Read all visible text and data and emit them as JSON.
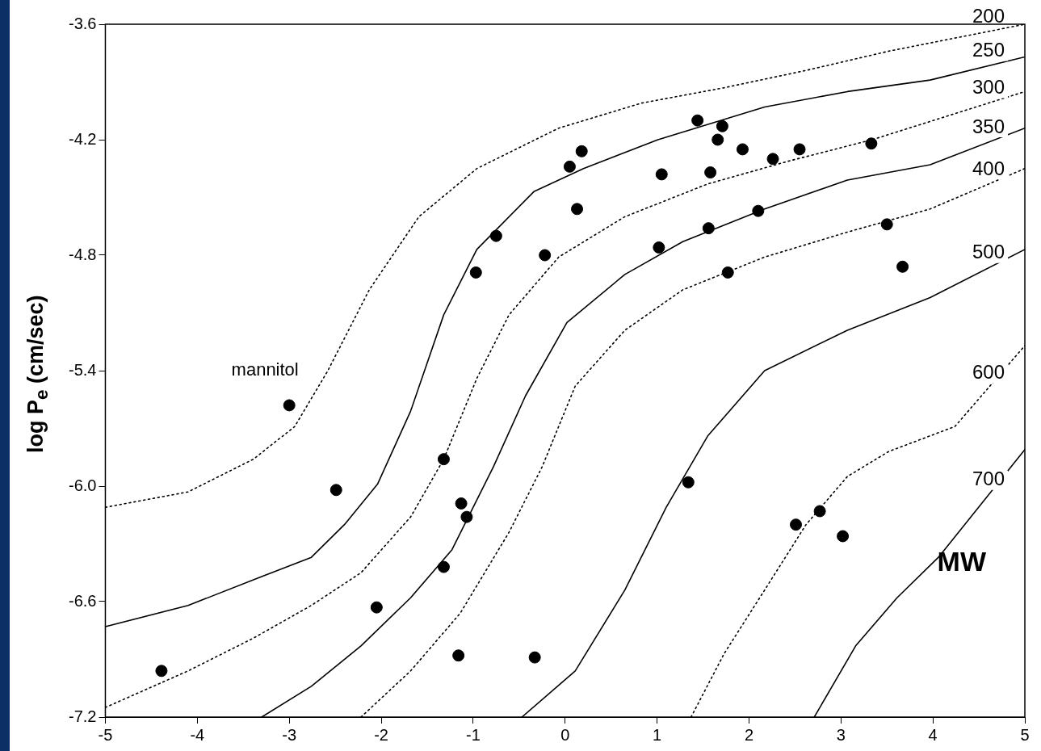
{
  "chart_data": {
    "type": "scatter",
    "ylabel": "log P$_{e}$ (cm/sec)",
    "legend_title": "MW",
    "grid": false,
    "legend": false,
    "marker": "circle",
    "xlim": [
      -5,
      5
    ],
    "xticks": [
      -5,
      -4,
      -3,
      -2,
      -1,
      0,
      1,
      2,
      3,
      4,
      5
    ],
    "ylim": [
      -7.2,
      -3.6
    ],
    "yticks": [
      -3.6,
      -4.2,
      -4.8,
      -5.4,
      {
        "value": -6,
        "label": "-6.0"
      },
      -6.6,
      -7.2
    ],
    "annotations": [
      {
        "text": "mannitol",
        "x": -3.0,
        "y": -5.58
      }
    ],
    "series": [
      {
        "color": "#000000",
        "x": [
          -4.39,
          -3.0,
          -2.49,
          -2.05,
          -1.32,
          -1.13,
          -1.07,
          -1.32,
          -1.16,
          -0.33,
          -0.97,
          -0.75,
          -0.22,
          0.05,
          0.18,
          0.13,
          1.02,
          1.05,
          1.44,
          1.71,
          1.66,
          1.58,
          1.56,
          1.93,
          2.26,
          2.55,
          2.1,
          1.77,
          1.34,
          2.51,
          2.77,
          3.02,
          3.33,
          3.5,
          3.67
        ],
        "values": [
          -6.96,
          -5.58,
          -6.02,
          -6.63,
          -5.86,
          -6.09,
          -6.16,
          -6.42,
          -6.88,
          -6.89,
          -4.89,
          -4.7,
          -4.8,
          -4.34,
          -4.26,
          -4.56,
          -4.76,
          -4.38,
          -4.1,
          -4.13,
          -4.2,
          -4.37,
          -4.66,
          -4.25,
          -4.3,
          -4.25,
          -4.57,
          -4.89,
          -5.98,
          -6.2,
          -6.13,
          -6.26,
          -4.22,
          -4.64,
          -4.86
        ]
      },
      {
        "type": "line",
        "name": "200",
        "color": "#000000",
        "line_style": "dotted",
        "marker": "none",
        "x": [
          -5,
          -4.1,
          -3.39,
          -2.94,
          -2.58,
          -2.13,
          -1.59,
          -0.96,
          -0.07,
          0.83,
          1.73,
          2.62,
          3.52,
          5
        ],
        "values": [
          -6.11,
          -6.03,
          -5.86,
          -5.69,
          -5.4,
          -4.98,
          -4.6,
          -4.35,
          -4.14,
          -4.01,
          -3.93,
          -3.84,
          -3.74,
          -3.6
        ]
      },
      {
        "type": "line",
        "name": "250",
        "color": "#000000",
        "line_style": "solid",
        "marker": "none",
        "x": [
          -5,
          -4.1,
          -3.3,
          -2.76,
          -2.4,
          -2.04,
          -1.68,
          -1.32,
          -0.96,
          -0.34,
          0.2,
          1.01,
          2.17,
          3.07,
          3.97,
          5
        ],
        "values": [
          -6.73,
          -6.62,
          -6.47,
          -6.37,
          -6.2,
          -5.99,
          -5.61,
          -5.11,
          -4.77,
          -4.47,
          -4.35,
          -4.2,
          -4.03,
          -3.95,
          -3.89,
          -3.77
        ]
      },
      {
        "type": "line",
        "name": "300",
        "color": "#000000",
        "line_style": "dotted",
        "marker": "none",
        "x": [
          -5,
          -4.1,
          -3.39,
          -2.76,
          -2.22,
          -1.68,
          -1.32,
          -0.96,
          -0.61,
          -0.07,
          0.65,
          1.55,
          2.44,
          3.34,
          5
        ],
        "values": [
          -7.15,
          -6.96,
          -6.79,
          -6.62,
          -6.45,
          -6.16,
          -5.86,
          -5.44,
          -5.11,
          -4.81,
          -4.6,
          -4.43,
          -4.31,
          -4.2,
          -3.95
        ]
      },
      {
        "type": "line",
        "name": "350",
        "color": "#000000",
        "line_style": "solid",
        "marker": "none",
        "x": [
          -3.3,
          -2.76,
          -2.22,
          -1.68,
          -1.23,
          -0.78,
          -0.43,
          0.02,
          0.65,
          1.28,
          2.17,
          3.07,
          3.97,
          5
        ],
        "values": [
          -7.2,
          -7.04,
          -6.83,
          -6.58,
          -6.33,
          -5.9,
          -5.53,
          -5.15,
          -4.9,
          -4.73,
          -4.56,
          -4.41,
          -4.33,
          -4.14
        ]
      },
      {
        "type": "line",
        "name": "400",
        "color": "#000000",
        "line_style": "dotted",
        "marker": "none",
        "x": [
          -2.22,
          -1.68,
          -1.14,
          -0.61,
          -0.25,
          0.11,
          0.65,
          1.28,
          2.17,
          3.07,
          3.97,
          5
        ],
        "values": [
          -7.2,
          -6.96,
          -6.66,
          -6.24,
          -5.9,
          -5.48,
          -5.19,
          -4.98,
          -4.81,
          -4.68,
          -4.56,
          -4.35
        ]
      },
      {
        "type": "line",
        "name": "500",
        "color": "#000000",
        "line_style": "solid",
        "marker": "none",
        "x": [
          -0.47,
          0.11,
          0.65,
          1.1,
          1.55,
          2.17,
          3.07,
          3.97,
          5
        ],
        "values": [
          -7.2,
          -6.96,
          -6.54,
          -6.11,
          -5.74,
          -5.4,
          -5.19,
          -5.02,
          -4.77
        ]
      },
      {
        "type": "line",
        "name": "600",
        "color": "#000000",
        "line_style": "dotted",
        "marker": "none",
        "x": [
          1.37,
          1.73,
          2.17,
          2.62,
          3.07,
          3.52,
          4.24,
          5
        ],
        "values": [
          -7.2,
          -6.87,
          -6.54,
          -6.2,
          -5.95,
          -5.82,
          -5.69,
          -5.27
        ]
      },
      {
        "type": "line",
        "name": "700",
        "color": "#000000",
        "line_style": "solid",
        "marker": "none",
        "x": [
          2.71,
          3.16,
          3.61,
          4.06,
          5
        ],
        "values": [
          -7.2,
          -6.83,
          -6.58,
          -6.37,
          -5.81
        ]
      }
    ]
  }
}
